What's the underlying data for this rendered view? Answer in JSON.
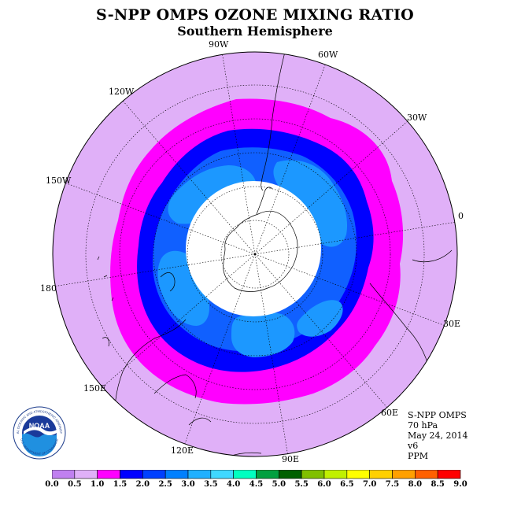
{
  "title": "S-NPP OMPS OZONE MIXING RATIO",
  "subtitle": "Southern Hemisphere",
  "longitude_labels": [
    {
      "id": "90w",
      "text": "90W"
    },
    {
      "id": "60w",
      "text": "60W"
    },
    {
      "id": "30w",
      "text": "30W"
    },
    {
      "id": "0",
      "text": "0"
    },
    {
      "id": "30e",
      "text": "30E"
    },
    {
      "id": "60e",
      "text": "60E"
    },
    {
      "id": "90e",
      "text": "90E"
    },
    {
      "id": "120e",
      "text": "120E"
    },
    {
      "id": "150e",
      "text": "150E"
    },
    {
      "id": "180",
      "text": "180"
    },
    {
      "id": "150w",
      "text": "150W"
    },
    {
      "id": "120w",
      "text": "120W"
    }
  ],
  "info": {
    "instrument": "S-NPP OMPS",
    "level": "70 hPa",
    "date": "May 24, 2014",
    "version": "v6",
    "units": "PPM"
  },
  "logo": {
    "text": "NOAA",
    "ring_text": "NATIONAL OCEANIC AND ATMOSPHERIC ADMINISTRATION",
    "ring_text_bottom": "U.S. DEPARTMENT OF COMMERCE"
  },
  "colorbar": {
    "labels": [
      "0.0",
      "0.5",
      "1.0",
      "1.5",
      "2.0",
      "2.5",
      "3.0",
      "3.5",
      "4.0",
      "4.5",
      "5.0",
      "5.5",
      "6.0",
      "6.5",
      "7.0",
      "7.5",
      "8.0",
      "8.5",
      "9.0"
    ],
    "colors": [
      "#c080f0",
      "#e0b0f8",
      "#ff00ff",
      "#0000ff",
      "#0040ff",
      "#0080ff",
      "#20b0ff",
      "#40d8ff",
      "#00ffc0",
      "#00a040",
      "#006000",
      "#80c000",
      "#c0f000",
      "#ffff00",
      "#ffd000",
      "#ffa000",
      "#ff6000",
      "#ff0000",
      "#804020"
    ]
  },
  "colors": {
    "outer": "#e0b0f8",
    "magenta": "#ff00ff",
    "dark_blue": "#0000ff",
    "medium_blue": "#1060ff",
    "light_blue": "#1c98ff",
    "no_data": "#ffffff"
  }
}
